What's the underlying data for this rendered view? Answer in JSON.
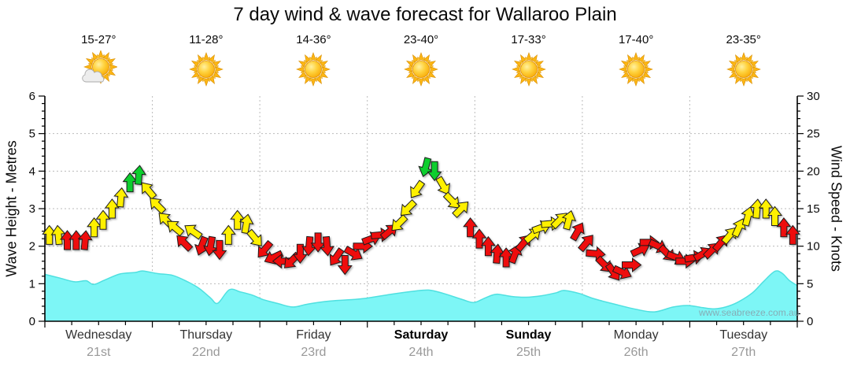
{
  "title": "7 day wind & wave forecast for Wallaroo Plain",
  "watermark": "www.seabreeze.com.au",
  "axes": {
    "left_label": "Wave Height - Metres",
    "right_label": "Wind Speed - Knots",
    "left_ticks": [
      0,
      1,
      2,
      3,
      4,
      5,
      6
    ],
    "right_ticks": [
      0,
      5,
      10,
      15,
      20,
      25,
      30
    ]
  },
  "days": [
    {
      "name": "Wednesday",
      "date": "21st",
      "temp": "15-27°",
      "icon": "sun-cloud",
      "weekend": false
    },
    {
      "name": "Thursday",
      "date": "22nd",
      "temp": "11-28°",
      "icon": "sun",
      "weekend": false
    },
    {
      "name": "Friday",
      "date": "23rd",
      "temp": "14-36°",
      "icon": "sun",
      "weekend": false
    },
    {
      "name": "Saturday",
      "date": "24th",
      "temp": "23-40°",
      "icon": "sun",
      "weekend": true
    },
    {
      "name": "Sunday",
      "date": "25th",
      "temp": "17-33°",
      "icon": "sun",
      "weekend": true
    },
    {
      "name": "Monday",
      "date": "26th",
      "temp": "17-40°",
      "icon": "sun",
      "weekend": false
    },
    {
      "name": "Tuesday",
      "date": "27th",
      "temp": "23-35°",
      "icon": "sun",
      "weekend": false
    }
  ],
  "colors": {
    "arrow_red": "#ee0f0f",
    "arrow_yellow": "#fff000",
    "arrow_green": "#0ace2e",
    "arrow_outline": "#1a1a1a",
    "wave_fill": "#7df6f6",
    "wave_stroke": "#4fe0e0",
    "grid": "#bbbbbb",
    "axis": "#000000",
    "sun_core": "#f7a600",
    "sun_ray": "#fcb614",
    "cloud": "#ededed"
  },
  "chart_data": [
    {
      "type": "area",
      "name": "wave-height",
      "ylabel": "Wave Height - Metres",
      "ylim": [
        0,
        6
      ],
      "x_unit": "hour-of-week (0-168, starting Wednesday 21st)",
      "grid": true,
      "points": [
        [
          0,
          1.25
        ],
        [
          3.4,
          1.15
        ],
        [
          6.7,
          1.05
        ],
        [
          9.2,
          1.08
        ],
        [
          10.9,
          0.98
        ],
        [
          13.4,
          1.1
        ],
        [
          16.8,
          1.26
        ],
        [
          20.2,
          1.3
        ],
        [
          21.8,
          1.34
        ],
        [
          25.2,
          1.27
        ],
        [
          28.6,
          1.22
        ],
        [
          31.9,
          1.05
        ],
        [
          34.4,
          0.88
        ],
        [
          37,
          0.62
        ],
        [
          38.6,
          0.48
        ],
        [
          41.2,
          0.84
        ],
        [
          43.7,
          0.78
        ],
        [
          46.2,
          0.7
        ],
        [
          48.7,
          0.58
        ],
        [
          52.1,
          0.47
        ],
        [
          55.4,
          0.38
        ],
        [
          58.8,
          0.46
        ],
        [
          63.8,
          0.54
        ],
        [
          68.9,
          0.58
        ],
        [
          72.2,
          0.62
        ],
        [
          77.3,
          0.72
        ],
        [
          82.3,
          0.8
        ],
        [
          85.7,
          0.83
        ],
        [
          89,
          0.74
        ],
        [
          93.2,
          0.58
        ],
        [
          95.8,
          0.5
        ],
        [
          98.3,
          0.62
        ],
        [
          100.8,
          0.72
        ],
        [
          104.2,
          0.66
        ],
        [
          107.5,
          0.64
        ],
        [
          110.9,
          0.68
        ],
        [
          114.2,
          0.76
        ],
        [
          115.9,
          0.82
        ],
        [
          119.3,
          0.74
        ],
        [
          122.6,
          0.6
        ],
        [
          127.7,
          0.44
        ],
        [
          131.9,
          0.32
        ],
        [
          136.1,
          0.25
        ],
        [
          140.3,
          0.38
        ],
        [
          143.6,
          0.42
        ],
        [
          147,
          0.36
        ],
        [
          149.5,
          0.33
        ],
        [
          152,
          0.38
        ],
        [
          154.6,
          0.5
        ],
        [
          157.9,
          0.75
        ],
        [
          160.4,
          1.05
        ],
        [
          163,
          1.33
        ],
        [
          164.6,
          1.28
        ],
        [
          166.3,
          1.08
        ],
        [
          168,
          0.95
        ]
      ]
    },
    {
      "type": "scatter",
      "name": "wind-speed-arrows",
      "ylabel": "Wind Speed - Knots",
      "ylim": [
        0,
        30
      ],
      "x_unit": "hour-of-week (0-168, starting Wednesday 21st)",
      "note": "each point: [hour, knots, direction-deg (0=up/N, 90=right/E), color r|y|g]",
      "points": [
        [
          1,
          11.5,
          0,
          "y"
        ],
        [
          3,
          11.5,
          355,
          "y"
        ],
        [
          5,
          10.8,
          0,
          "r"
        ],
        [
          7,
          10.8,
          0,
          "r"
        ],
        [
          9,
          10.8,
          5,
          "r"
        ],
        [
          11,
          12.5,
          0,
          "y"
        ],
        [
          13,
          13.5,
          0,
          "y"
        ],
        [
          15,
          15,
          0,
          "y"
        ],
        [
          17,
          16.5,
          5,
          "y"
        ],
        [
          19,
          18.5,
          0,
          "g"
        ],
        [
          21,
          19.5,
          5,
          "g"
        ],
        [
          23,
          17.5,
          320,
          "y"
        ],
        [
          25,
          15.5,
          315,
          "y"
        ],
        [
          27,
          13.5,
          315,
          "y"
        ],
        [
          29,
          12.5,
          310,
          "y"
        ],
        [
          31,
          10.5,
          315,
          "r"
        ],
        [
          33,
          12,
          305,
          "y"
        ],
        [
          35,
          10,
          200,
          "r"
        ],
        [
          37,
          10,
          190,
          "r"
        ],
        [
          39,
          9.5,
          180,
          "r"
        ],
        [
          41,
          11.5,
          0,
          "y"
        ],
        [
          43,
          13.5,
          0,
          "y"
        ],
        [
          45,
          13,
          10,
          "y"
        ],
        [
          47,
          11,
          140,
          "y"
        ],
        [
          49,
          9.5,
          220,
          "r"
        ],
        [
          51,
          8.5,
          245,
          "r"
        ],
        [
          53,
          8,
          270,
          "r"
        ],
        [
          55,
          8,
          225,
          "r"
        ],
        [
          57,
          9,
          180,
          "r"
        ],
        [
          59,
          10,
          185,
          "r"
        ],
        [
          61,
          10.5,
          180,
          "r"
        ],
        [
          63,
          10,
          175,
          "r"
        ],
        [
          65,
          8.5,
          215,
          "r"
        ],
        [
          67,
          7.5,
          180,
          "r"
        ],
        [
          69,
          9,
          120,
          "r"
        ],
        [
          71,
          10,
          90,
          "r"
        ],
        [
          73,
          11,
          70,
          "r"
        ],
        [
          75,
          11.5,
          85,
          "r"
        ],
        [
          77,
          12,
          50,
          "r"
        ],
        [
          79,
          13,
          225,
          "y"
        ],
        [
          81,
          15,
          225,
          "y"
        ],
        [
          83,
          17.5,
          215,
          "y"
        ],
        [
          85,
          20.5,
          195,
          "g"
        ],
        [
          87,
          20,
          180,
          "g"
        ],
        [
          89,
          18,
          150,
          "y"
        ],
        [
          91,
          16,
          135,
          "y"
        ],
        [
          93,
          15,
          45,
          "y"
        ],
        [
          95,
          12.5,
          0,
          "r"
        ],
        [
          97,
          11,
          0,
          "r"
        ],
        [
          99,
          10,
          0,
          "r"
        ],
        [
          101,
          9,
          5,
          "r"
        ],
        [
          103,
          8.5,
          0,
          "r"
        ],
        [
          105,
          9,
          20,
          "r"
        ],
        [
          107,
          10.5,
          40,
          "r"
        ],
        [
          109,
          11.5,
          50,
          "y"
        ],
        [
          111,
          12.5,
          70,
          "y"
        ],
        [
          113,
          13,
          85,
          "y"
        ],
        [
          115,
          13.5,
          45,
          "y"
        ],
        [
          117,
          13.5,
          15,
          "y"
        ],
        [
          119,
          12,
          30,
          "r"
        ],
        [
          121,
          10.5,
          40,
          "r"
        ],
        [
          123,
          9,
          95,
          "r"
        ],
        [
          125,
          7.5,
          135,
          "r"
        ],
        [
          127,
          6.5,
          145,
          "r"
        ],
        [
          129,
          6.5,
          115,
          "r"
        ],
        [
          131,
          7.5,
          90,
          "r"
        ],
        [
          133,
          9.5,
          65,
          "r"
        ],
        [
          135,
          10.5,
          90,
          "r"
        ],
        [
          137,
          10,
          115,
          "r"
        ],
        [
          139,
          9,
          135,
          "r"
        ],
        [
          141,
          8.5,
          110,
          "r"
        ],
        [
          143,
          8,
          90,
          "r"
        ],
        [
          145,
          8.5,
          80,
          "r"
        ],
        [
          147,
          9,
          60,
          "r"
        ],
        [
          149,
          9.5,
          45,
          "r"
        ],
        [
          151,
          10.5,
          40,
          "r"
        ],
        [
          153,
          11.5,
          40,
          "y"
        ],
        [
          155,
          12.5,
          25,
          "y"
        ],
        [
          157,
          14,
          15,
          "y"
        ],
        [
          159,
          15,
          5,
          "y"
        ],
        [
          161,
          15,
          0,
          "y"
        ],
        [
          163,
          14,
          0,
          "y"
        ],
        [
          165,
          12.5,
          0,
          "r"
        ],
        [
          167,
          11.5,
          0,
          "r"
        ]
      ]
    }
  ]
}
